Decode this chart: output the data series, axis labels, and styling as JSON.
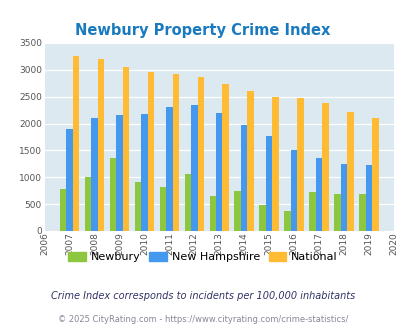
{
  "title": "Newbury Property Crime Index",
  "years": [
    2007,
    2008,
    2009,
    2010,
    2011,
    2012,
    2013,
    2014,
    2015,
    2016,
    2017,
    2018,
    2019
  ],
  "newbury": [
    790,
    1010,
    1350,
    920,
    820,
    1065,
    660,
    750,
    475,
    375,
    730,
    685,
    690
  ],
  "new_hampshire": [
    1900,
    2100,
    2160,
    2185,
    2300,
    2350,
    2190,
    1970,
    1760,
    1505,
    1365,
    1240,
    1220
  ],
  "national": [
    3260,
    3200,
    3050,
    2960,
    2920,
    2870,
    2730,
    2600,
    2500,
    2475,
    2380,
    2210,
    2110
  ],
  "color_newbury": "#8dc63f",
  "color_nh": "#4499ee",
  "color_national": "#ffbb33",
  "bg_color": "#dce9f0",
  "ylim": [
    0,
    3500
  ],
  "yticks": [
    0,
    500,
    1000,
    1500,
    2000,
    2500,
    3000,
    3500
  ],
  "footnote1": "Crime Index corresponds to incidents per 100,000 inhabitants",
  "footnote2": "© 2025 CityRating.com - https://www.cityrating.com/crime-statistics/",
  "bar_width": 0.26,
  "figsize": [
    4.06,
    3.3
  ],
  "dpi": 100
}
